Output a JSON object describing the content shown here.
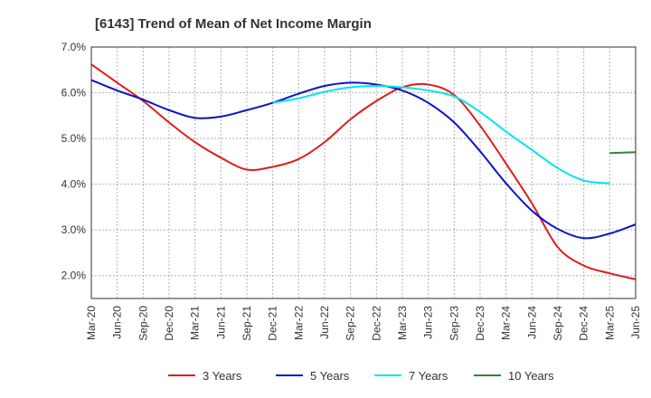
{
  "chart_data": {
    "type": "line",
    "title": "[6143]  Trend of Mean of Net Income Margin",
    "xlabel": "",
    "ylabel": "",
    "ylim": [
      1.5,
      7.0
    ],
    "yticks": [
      2.0,
      3.0,
      4.0,
      5.0,
      6.0,
      7.0
    ],
    "ytick_labels": [
      "2.0%",
      "3.0%",
      "4.0%",
      "5.0%",
      "6.0%",
      "7.0%"
    ],
    "x_labels": [
      "Mar-20",
      "Jun-20",
      "Sep-20",
      "Dec-20",
      "Mar-21",
      "Jun-21",
      "Sep-21",
      "Dec-21",
      "Mar-22",
      "Jun-22",
      "Sep-22",
      "Dec-22",
      "Mar-23",
      "Jun-23",
      "Sep-23",
      "Dec-23",
      "Mar-24",
      "Jun-24",
      "Sep-24",
      "Dec-24",
      "Mar-25",
      "Jun-25"
    ],
    "grid": true,
    "legend_position": "bottom",
    "series": [
      {
        "name": "3 Years",
        "color": "#e31a1c",
        "values": [
          6.62,
          6.22,
          5.82,
          5.35,
          4.92,
          4.58,
          4.32,
          4.38,
          4.55,
          4.92,
          5.42,
          5.82,
          6.12,
          6.18,
          5.95,
          5.28,
          4.45,
          3.58,
          2.62,
          2.22,
          2.05,
          1.92
        ]
      },
      {
        "name": "5 Years",
        "color": "#0a14c8",
        "values": [
          6.28,
          6.05,
          5.85,
          5.62,
          5.45,
          5.48,
          5.62,
          5.78,
          5.98,
          6.15,
          6.22,
          6.18,
          6.05,
          5.78,
          5.35,
          4.72,
          4.02,
          3.42,
          3.02,
          2.82,
          2.92,
          3.12
        ]
      },
      {
        "name": "7 Years",
        "color": "#00e5ee",
        "x_index_start": 7,
        "values": [
          5.78,
          5.88,
          6.02,
          6.12,
          6.15,
          6.12,
          6.05,
          5.92,
          5.58,
          5.15,
          4.75,
          4.35,
          4.08,
          4.02
        ]
      },
      {
        "name": "10 Years",
        "color": "#2e8b2e",
        "x_index_start": 20,
        "values": [
          4.68,
          4.7
        ]
      }
    ]
  }
}
